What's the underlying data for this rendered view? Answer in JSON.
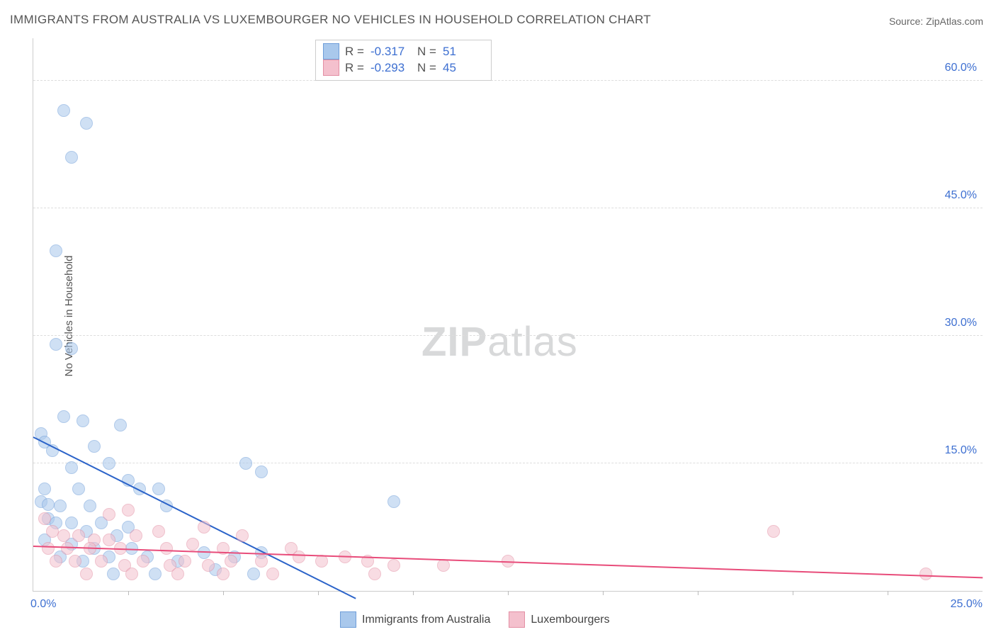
{
  "title": "IMMIGRANTS FROM AUSTRALIA VS LUXEMBOURGER NO VEHICLES IN HOUSEHOLD CORRELATION CHART",
  "source_prefix": "Source: ",
  "source_name": "ZipAtlas.com",
  "ylabel": "No Vehicles in Household",
  "watermark_bold": "ZIP",
  "watermark_rest": "atlas",
  "chart": {
    "type": "scatter-with-regression",
    "xlim": [
      0,
      25
    ],
    "ylim": [
      0,
      65
    ],
    "yticks": [
      15,
      30,
      45,
      60
    ],
    "ytick_labels": [
      "15.0%",
      "30.0%",
      "45.0%",
      "60.0%"
    ],
    "xtick_marks": [
      2.5,
      5,
      7.5,
      10,
      12.5,
      15,
      17.5,
      20,
      22.5
    ],
    "xlabel_origin": "0.0%",
    "xlabel_max": "25.0%",
    "grid_color": "#dddddd",
    "axis_color": "#cccccc",
    "background_color": "#ffffff",
    "tick_label_color": "#3d6fd1",
    "point_radius": 8,
    "point_opacity": 0.55,
    "series": [
      {
        "name": "Immigrants from Australia",
        "legend_label": "Immigrants from Australia",
        "color_fill": "#a9c8ec",
        "color_stroke": "#6f9ed9",
        "line_color": "#2b63c9",
        "R_label": "R  =",
        "R": "-0.317",
        "N_label": "N  =",
        "N": "51",
        "regression": {
          "x1": 0,
          "y1": 18.0,
          "x2": 8.5,
          "y2": -1.0
        },
        "points": [
          {
            "x": 0.8,
            "y": 56.5
          },
          {
            "x": 1.4,
            "y": 55.0
          },
          {
            "x": 1.0,
            "y": 51.0
          },
          {
            "x": 0.6,
            "y": 40.0
          },
          {
            "x": 0.6,
            "y": 29.0
          },
          {
            "x": 1.0,
            "y": 28.5
          },
          {
            "x": 0.8,
            "y": 20.5
          },
          {
            "x": 1.3,
            "y": 20.0
          },
          {
            "x": 0.2,
            "y": 18.5
          },
          {
            "x": 0.3,
            "y": 17.5
          },
          {
            "x": 0.5,
            "y": 16.5
          },
          {
            "x": 1.6,
            "y": 17.0
          },
          {
            "x": 2.3,
            "y": 19.5
          },
          {
            "x": 1.0,
            "y": 14.5
          },
          {
            "x": 2.0,
            "y": 15.0
          },
          {
            "x": 5.6,
            "y": 15.0
          },
          {
            "x": 6.0,
            "y": 14.0
          },
          {
            "x": 0.3,
            "y": 12.0
          },
          {
            "x": 2.5,
            "y": 13.0
          },
          {
            "x": 1.2,
            "y": 12.0
          },
          {
            "x": 0.2,
            "y": 10.5
          },
          {
            "x": 0.4,
            "y": 10.2
          },
          {
            "x": 0.7,
            "y": 10.0
          },
          {
            "x": 1.5,
            "y": 10.0
          },
          {
            "x": 2.8,
            "y": 12.0
          },
          {
            "x": 3.3,
            "y": 12.0
          },
          {
            "x": 9.5,
            "y": 10.5
          },
          {
            "x": 0.4,
            "y": 8.5
          },
          {
            "x": 0.6,
            "y": 8.0
          },
          {
            "x": 1.0,
            "y": 8.0
          },
          {
            "x": 1.8,
            "y": 8.0
          },
          {
            "x": 1.4,
            "y": 7.0
          },
          {
            "x": 2.2,
            "y": 6.5
          },
          {
            "x": 3.5,
            "y": 10.0
          },
          {
            "x": 2.5,
            "y": 7.5
          },
          {
            "x": 0.3,
            "y": 6.0
          },
          {
            "x": 1.0,
            "y": 5.5
          },
          {
            "x": 1.6,
            "y": 5.0
          },
          {
            "x": 2.6,
            "y": 5.0
          },
          {
            "x": 0.7,
            "y": 4.0
          },
          {
            "x": 1.3,
            "y": 3.5
          },
          {
            "x": 2.0,
            "y": 4.0
          },
          {
            "x": 3.0,
            "y": 4.0
          },
          {
            "x": 3.8,
            "y": 3.5
          },
          {
            "x": 4.5,
            "y": 4.5
          },
          {
            "x": 5.3,
            "y": 4.0
          },
          {
            "x": 6.0,
            "y": 4.5
          },
          {
            "x": 2.1,
            "y": 2.0
          },
          {
            "x": 3.2,
            "y": 2.0
          },
          {
            "x": 4.8,
            "y": 2.5
          },
          {
            "x": 5.8,
            "y": 2.0
          }
        ]
      },
      {
        "name": "Luxembourgers",
        "legend_label": "Luxembourgers",
        "color_fill": "#f4c0cd",
        "color_stroke": "#e38fa4",
        "line_color": "#e84c7a",
        "R_label": "R  =",
        "R": "-0.293",
        "N_label": "N  =",
        "N": "45",
        "regression": {
          "x1": 0,
          "y1": 5.2,
          "x2": 25,
          "y2": 1.5
        },
        "points": [
          {
            "x": 0.3,
            "y": 8.5
          },
          {
            "x": 2.0,
            "y": 9.0
          },
          {
            "x": 2.5,
            "y": 9.5
          },
          {
            "x": 0.5,
            "y": 7.0
          },
          {
            "x": 0.8,
            "y": 6.5
          },
          {
            "x": 1.2,
            "y": 6.5
          },
          {
            "x": 1.6,
            "y": 6.0
          },
          {
            "x": 2.0,
            "y": 6.0
          },
          {
            "x": 2.7,
            "y": 6.5
          },
          {
            "x": 3.3,
            "y": 7.0
          },
          {
            "x": 0.4,
            "y": 5.0
          },
          {
            "x": 0.9,
            "y": 5.0
          },
          {
            "x": 1.5,
            "y": 5.0
          },
          {
            "x": 2.3,
            "y": 5.0
          },
          {
            "x": 3.5,
            "y": 5.0
          },
          {
            "x": 4.2,
            "y": 5.5
          },
          {
            "x": 5.0,
            "y": 5.0
          },
          {
            "x": 6.8,
            "y": 5.0
          },
          {
            "x": 5.5,
            "y": 6.5
          },
          {
            "x": 0.6,
            "y": 3.5
          },
          {
            "x": 1.1,
            "y": 3.5
          },
          {
            "x": 1.8,
            "y": 3.5
          },
          {
            "x": 2.4,
            "y": 3.0
          },
          {
            "x": 2.9,
            "y": 3.5
          },
          {
            "x": 3.6,
            "y": 3.0
          },
          {
            "x": 4.0,
            "y": 3.5
          },
          {
            "x": 4.6,
            "y": 3.0
          },
          {
            "x": 5.2,
            "y": 3.5
          },
          {
            "x": 6.0,
            "y": 3.5
          },
          {
            "x": 7.0,
            "y": 4.0
          },
          {
            "x": 7.6,
            "y": 3.5
          },
          {
            "x": 8.2,
            "y": 4.0
          },
          {
            "x": 8.8,
            "y": 3.5
          },
          {
            "x": 9.5,
            "y": 3.0
          },
          {
            "x": 10.8,
            "y": 3.0
          },
          {
            "x": 12.5,
            "y": 3.5
          },
          {
            "x": 1.4,
            "y": 2.0
          },
          {
            "x": 2.6,
            "y": 2.0
          },
          {
            "x": 3.8,
            "y": 2.0
          },
          {
            "x": 5.0,
            "y": 2.0
          },
          {
            "x": 6.3,
            "y": 2.0
          },
          {
            "x": 9.0,
            "y": 2.0
          },
          {
            "x": 19.5,
            "y": 7.0
          },
          {
            "x": 23.5,
            "y": 2.0
          },
          {
            "x": 4.5,
            "y": 7.5
          }
        ]
      }
    ]
  }
}
